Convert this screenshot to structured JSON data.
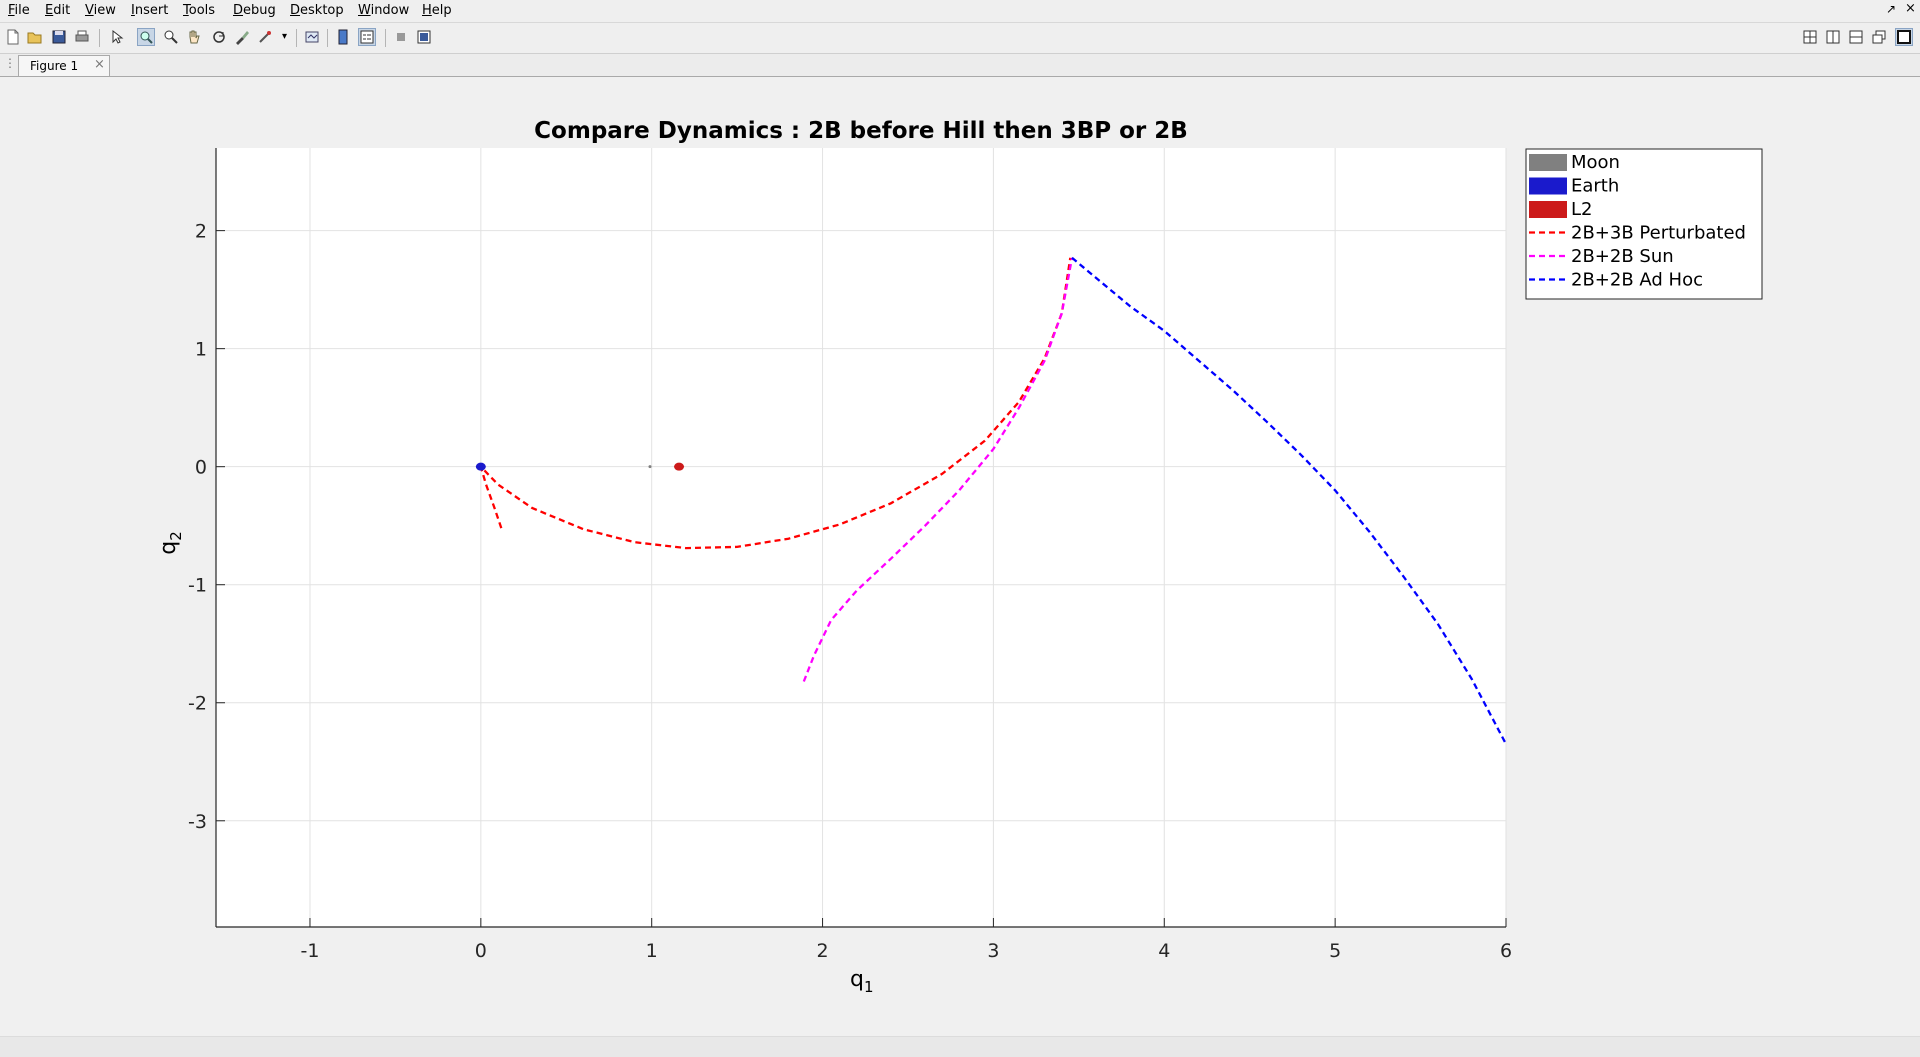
{
  "menu": [
    "File",
    "Edit",
    "View",
    "Insert",
    "Tools",
    "Debug",
    "Desktop",
    "Window",
    "Help"
  ],
  "tab": {
    "label": "Figure 1"
  },
  "chart_data": {
    "type": "line",
    "title": "Compare Dynamics : 2B before Hill then 3BP or 2B",
    "xlabel": "q",
    "xlabel_sub": "1",
    "ylabel": "q",
    "ylabel_sub": "2",
    "xlim": [
      -1.55,
      6
    ],
    "ylim": [
      -3.9,
      2.7
    ],
    "xticks": [
      -1,
      0,
      1,
      2,
      3,
      4,
      5,
      6
    ],
    "yticks": [
      -3,
      -2,
      -1,
      0,
      1,
      2
    ],
    "grid": true,
    "legend": {
      "position": "top-right outside"
    },
    "bodies": [
      {
        "name": "Moon",
        "x": 0.99,
        "y": 0,
        "color": "#808080"
      },
      {
        "name": "Earth",
        "x": 0.0,
        "y": 0.0,
        "color": "#1a1acc"
      },
      {
        "name": "L2",
        "x": 1.16,
        "y": 0.0,
        "color": "#cc1a1a"
      }
    ],
    "series": [
      {
        "name": "2B+3B Perturbated",
        "color": "#ff0000",
        "style": "dashed",
        "x": [
          0.12,
          0.08,
          0.03,
          0.0,
          0.1,
          0.3,
          0.6,
          0.9,
          1.2,
          1.5,
          1.8,
          2.1,
          2.4,
          2.7,
          2.95,
          3.15,
          3.3,
          3.4,
          3.45
        ],
        "y": [
          -0.52,
          -0.35,
          -0.15,
          0.0,
          -0.15,
          -0.35,
          -0.53,
          -0.64,
          -0.69,
          -0.68,
          -0.61,
          -0.49,
          -0.31,
          -0.06,
          0.22,
          0.55,
          0.92,
          1.3,
          1.77
        ]
      },
      {
        "name": "2B+2B Sun",
        "color": "#ff00ff",
        "style": "dashed",
        "x": [
          1.89,
          1.95,
          2.05,
          2.2,
          2.4,
          2.6,
          2.8,
          3.0,
          3.15,
          3.3,
          3.4,
          3.46
        ],
        "y": [
          -1.82,
          -1.6,
          -1.3,
          -1.05,
          -0.78,
          -0.5,
          -0.2,
          0.15,
          0.5,
          0.9,
          1.3,
          1.77
        ]
      },
      {
        "name": "2B+2B Ad Hoc",
        "color": "#0000ff",
        "style": "dashed",
        "x": [
          3.46,
          3.6,
          3.8,
          4.0,
          4.2,
          4.4,
          4.6,
          4.8,
          5.0,
          5.2,
          5.4,
          5.6,
          5.8,
          6.0
        ],
        "y": [
          1.77,
          1.6,
          1.36,
          1.15,
          0.9,
          0.65,
          0.38,
          0.1,
          -0.2,
          -0.55,
          -0.93,
          -1.33,
          -1.8,
          -2.35
        ]
      }
    ]
  }
}
